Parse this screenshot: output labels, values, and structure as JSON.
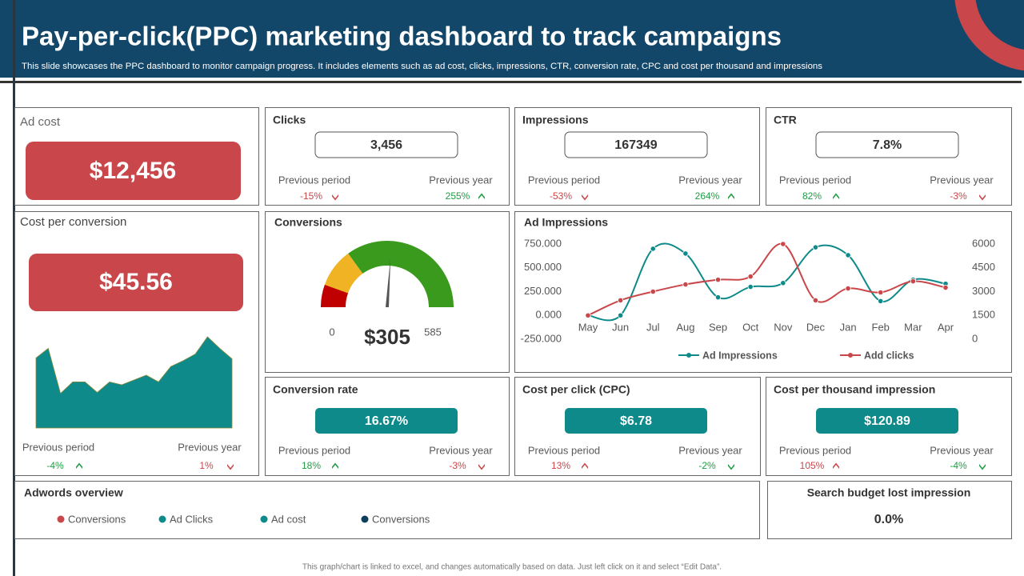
{
  "header": {
    "title": "Pay-per-click(PPC) marketing dashboard to track campaigns",
    "subtitle": "This slide showcases the PPC dashboard to monitor campaign progress. It includes elements such as ad cost, clicks, impressions, CTR, conversion rate, CPC and cost per thousand and impressions"
  },
  "ad_cost": {
    "title": "Ad cost",
    "value": "$12,456",
    "color": "#c9474a"
  },
  "cost_per_conversion": {
    "title": "Cost per conversion",
    "value": "$45.56",
    "color": "#c9474a",
    "sparkline": {
      "type": "area",
      "values": [
        73,
        83,
        36,
        48,
        48,
        37,
        48,
        45,
        50,
        55,
        48,
        64,
        70,
        77,
        95,
        83,
        72
      ],
      "ylim": [
        0,
        100
      ],
      "color": "#0e8a8a"
    },
    "stats": [
      {
        "label": "Previous period",
        "value": "-4%",
        "arrow": "up",
        "color": "#1f9d44"
      },
      {
        "label": "Previous year",
        "value": "1%",
        "arrow": "down",
        "color": "#c9474a"
      }
    ]
  },
  "kpis": [
    {
      "title": "Clicks",
      "value": "3,456",
      "style": "outline",
      "stats": [
        {
          "label": "Previous period",
          "value": "-15%",
          "arrow": "down",
          "color": "#c9474a"
        },
        {
          "label": "Previous year",
          "value": "255%",
          "arrow": "up",
          "color": "#1f9d44"
        }
      ]
    },
    {
      "title": "Impressions",
      "value": "167349",
      "style": "outline",
      "stats": [
        {
          "label": "Previous period",
          "value": "-53%",
          "arrow": "down",
          "color": "#c9474a"
        },
        {
          "label": "Previous year",
          "value": "264%",
          "arrow": "up",
          "color": "#1f9d44"
        }
      ]
    },
    {
      "title": "CTR",
      "value": "7.8%",
      "style": "outline",
      "stats": [
        {
          "label": "Previous period",
          "value": "82%",
          "arrow": "up",
          "color": "#1f9d44"
        },
        {
          "label": "Previous year",
          "value": "-3%",
          "arrow": "down",
          "color": "#c9474a"
        }
      ]
    },
    {
      "title": "Conversion rate",
      "value": "16.67%",
      "style": "filled",
      "color": "#0e8a8a",
      "stats": [
        {
          "label": "Previous period",
          "value": "18%",
          "arrow": "up",
          "color": "#1f9d44"
        },
        {
          "label": "Previous year",
          "value": "-3%",
          "arrow": "down",
          "color": "#c9474a"
        }
      ]
    },
    {
      "title": "Cost per click (CPC)",
      "value": "$6.78",
      "style": "filled",
      "color": "#0e8a8a",
      "stats": [
        {
          "label": "Previous period",
          "value": "13%",
          "arrow": "up",
          "color": "#c9474a"
        },
        {
          "label": "Previous year",
          "value": "-2%",
          "arrow": "down",
          "color": "#1f9d44"
        }
      ]
    },
    {
      "title": "Cost per thousand impression",
      "value": "$120.89",
      "style": "filled",
      "color": "#0e8a8a",
      "stats": [
        {
          "label": "Previous period",
          "value": "105%",
          "arrow": "up",
          "color": "#c9474a"
        },
        {
          "label": "Previous year",
          "value": "-4%",
          "arrow": "down",
          "color": "#1f9d44"
        }
      ]
    }
  ],
  "conversions": {
    "title": "Conversions",
    "type": "gauge",
    "min": 0,
    "max": 585,
    "value": 305,
    "value_label": "$305"
  },
  "chart_data": {
    "type": "line",
    "title": "Ad Impressions",
    "categories": [
      "May",
      "Jun",
      "Jul",
      "Aug",
      "Sep",
      "Oct",
      "Nov",
      "Dec",
      "Jan",
      "Feb",
      "Mar",
      "Apr"
    ],
    "series": [
      {
        "name": "Ad Impressions",
        "color": "#0e8a8a",
        "values": [
          0,
          0,
          700000,
          650000,
          190000,
          300000,
          340000,
          715000,
          633000,
          150000,
          375000,
          333000
        ]
      },
      {
        "name": "Add clicks",
        "color": "#c9474a",
        "axis": "y2",
        "values": [
          1500,
          2450,
          3000,
          3450,
          3750,
          3950,
          6000,
          2450,
          3200,
          2950,
          3650,
          3250
        ]
      }
    ],
    "ylim": [
      -250000,
      750000
    ],
    "yticks": [
      {
        "value": 750000,
        "label": "750.000"
      },
      {
        "value": 500000,
        "label": "500.000"
      },
      {
        "value": 250000,
        "label": "250.000"
      },
      {
        "value": 0,
        "label": "0.000"
      },
      {
        "value": -250000,
        "label": "-250.000"
      }
    ],
    "y2lim": [
      0,
      6000
    ],
    "y2ticks": [
      6000,
      4500,
      3000,
      1500,
      0
    ],
    "legend": "bottom",
    "grid": false
  },
  "adwords": {
    "title": "Adwords overview",
    "legend": [
      {
        "name": "Conversions",
        "color": "#c9474a"
      },
      {
        "name": "Ad Clicks",
        "color": "#0e8a8a"
      },
      {
        "name": "Ad cost",
        "color": "#0e8a8a"
      },
      {
        "name": "Conversions",
        "color": "#0d3f5c"
      }
    ]
  },
  "search_budget": {
    "title": "Search budget lost impression",
    "value": "0.0%"
  },
  "footer": "This graph/chart is linked to excel, and changes automatically based on data. Just left click on it and select “Edit Data”."
}
